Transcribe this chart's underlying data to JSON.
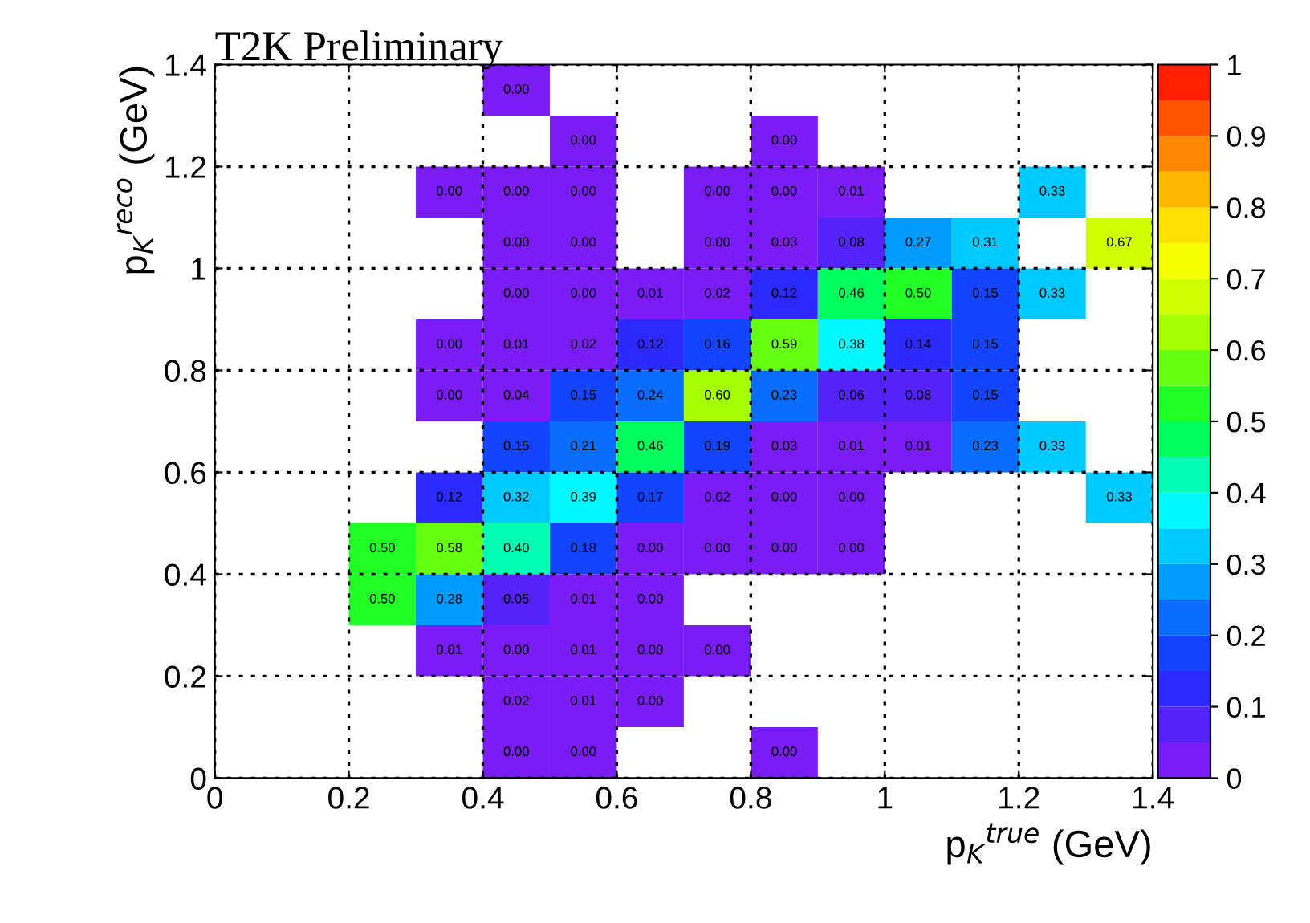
{
  "chart_data": {
    "type": "heatmap",
    "title": "T2K Preliminary",
    "xlabel": "p$_{K}$$^{true}$ (GeV)",
    "ylabel": "p$_{K}$$^{reco}$ (GeV)",
    "x": [
      0.05,
      0.15,
      0.25,
      0.35,
      0.45,
      0.55,
      0.65,
      0.75,
      0.85,
      0.95,
      1.05,
      1.15,
      1.25,
      1.35
    ],
    "y": [
      1.35,
      1.25,
      1.15,
      1.05,
      0.95,
      0.85,
      0.75,
      0.65,
      0.55,
      0.45,
      0.35,
      0.25,
      0.15,
      0.05
    ],
    "xlim": [
      0,
      1.4
    ],
    "ylim": [
      0,
      1.4
    ],
    "xticks": [
      0,
      0.2,
      0.4,
      0.6,
      0.8,
      1,
      1.2,
      1.4
    ],
    "yticks": [
      0,
      0.2,
      0.4,
      0.6,
      0.8,
      1,
      1.2,
      1.4
    ],
    "clim": [
      0,
      1
    ],
    "cticks": [
      0,
      0.1,
      0.2,
      0.3,
      0.4,
      0.5,
      0.6,
      0.7,
      0.8,
      0.9,
      1
    ],
    "grid": true,
    "cells": [
      [
        null,
        null,
        null,
        null,
        0.0,
        null,
        null,
        null,
        null,
        null,
        null,
        null,
        null,
        null
      ],
      [
        null,
        null,
        null,
        null,
        null,
        0.0,
        null,
        null,
        0.0,
        null,
        null,
        null,
        null,
        null
      ],
      [
        null,
        null,
        null,
        0.0,
        0.0,
        0.0,
        null,
        0.0,
        0.0,
        0.01,
        null,
        null,
        0.33,
        null
      ],
      [
        null,
        null,
        null,
        null,
        0.0,
        0.0,
        null,
        0.0,
        0.03,
        0.08,
        0.27,
        0.31,
        null,
        0.67
      ],
      [
        null,
        null,
        null,
        null,
        0.0,
        0.0,
        0.01,
        0.02,
        0.12,
        0.46,
        0.5,
        0.15,
        0.33,
        null
      ],
      [
        null,
        null,
        null,
        0.0,
        0.01,
        0.02,
        0.12,
        0.16,
        0.59,
        0.38,
        0.14,
        0.15,
        null,
        null
      ],
      [
        null,
        null,
        null,
        0.0,
        0.04,
        0.15,
        0.24,
        0.6,
        0.23,
        0.06,
        0.08,
        0.15,
        null,
        null
      ],
      [
        null,
        null,
        null,
        null,
        0.15,
        0.21,
        0.46,
        0.19,
        0.03,
        0.01,
        0.01,
        0.23,
        0.33,
        null
      ],
      [
        null,
        null,
        null,
        0.12,
        0.32,
        0.39,
        0.17,
        0.02,
        0.0,
        0.0,
        null,
        null,
        null,
        0.33
      ],
      [
        null,
        null,
        0.5,
        0.58,
        0.4,
        0.18,
        0.0,
        0.0,
        0.0,
        0.0,
        null,
        null,
        null,
        null
      ],
      [
        null,
        null,
        0.5,
        0.28,
        0.05,
        0.01,
        0.0,
        null,
        null,
        null,
        null,
        null,
        null,
        null
      ],
      [
        null,
        null,
        null,
        0.01,
        0.0,
        0.01,
        0.0,
        0.0,
        null,
        null,
        null,
        null,
        null,
        null
      ],
      [
        null,
        null,
        null,
        null,
        0.02,
        0.01,
        0.0,
        null,
        null,
        null,
        null,
        null,
        null,
        null
      ],
      [
        null,
        null,
        null,
        null,
        0.0,
        0.0,
        null,
        null,
        0.0,
        null,
        null,
        null,
        null,
        null
      ]
    ],
    "cell_labels": [
      [
        null,
        null,
        null,
        null,
        "0.00",
        null,
        null,
        null,
        null,
        null,
        null,
        null,
        null,
        null
      ],
      [
        null,
        null,
        null,
        null,
        null,
        "0.00",
        null,
        null,
        "0.00",
        null,
        null,
        null,
        null,
        null
      ],
      [
        null,
        null,
        null,
        "0.00",
        "0.00",
        "0.00",
        null,
        "0.00",
        "0.00",
        "0.01",
        null,
        null,
        "0.33",
        null
      ],
      [
        null,
        null,
        null,
        null,
        "0.00",
        "0.00",
        null,
        "0.00",
        "0.03",
        "0.08",
        "0.27",
        "0.31",
        null,
        "0.67"
      ],
      [
        null,
        null,
        null,
        null,
        "0.00",
        "0.00",
        "0.01",
        "0.02",
        "0.12",
        "0.46",
        "0.50",
        "0.15",
        "0.33",
        null
      ],
      [
        null,
        null,
        null,
        "0.00",
        "0.01",
        "0.02",
        "0.12",
        "0.16",
        "0.59",
        "0.38",
        "0.14",
        "0.15",
        null,
        null
      ],
      [
        null,
        null,
        null,
        "0.00",
        "0.04",
        "0.15",
        "0.24",
        "0.60",
        "0.23",
        "0.06",
        "0.08",
        "0.15",
        null,
        null
      ],
      [
        null,
        null,
        null,
        null,
        "0.15",
        "0.21",
        "0.46",
        "0.19",
        "0.03",
        "0.01",
        "0.01",
        "0.23",
        "0.33",
        null
      ],
      [
        null,
        null,
        null,
        "0.12",
        "0.32",
        "0.39",
        "0.17",
        "0.02",
        "0.00",
        "0.00",
        null,
        null,
        null,
        "0.33"
      ],
      [
        null,
        null,
        "0.50",
        "0.58",
        "0.40",
        "0.18",
        "0.00",
        "0.00",
        "0.00",
        "0.00",
        null,
        null,
        null,
        null
      ],
      [
        null,
        null,
        "0.50",
        "0.28",
        "0.05",
        "0.01",
        "0.00",
        null,
        null,
        null,
        null,
        null,
        null,
        null
      ],
      [
        null,
        null,
        null,
        "0.01",
        "0.00",
        "0.01",
        "0.00",
        "0.00",
        null,
        null,
        null,
        null,
        null,
        null
      ],
      [
        null,
        null,
        null,
        null,
        "0.02",
        "0.01",
        "0.00",
        null,
        null,
        null,
        null,
        null,
        null,
        null
      ],
      [
        null,
        null,
        null,
        null,
        "0.00",
        "0.00",
        null,
        null,
        "0.00",
        null,
        null,
        null,
        null,
        null
      ]
    ]
  }
}
